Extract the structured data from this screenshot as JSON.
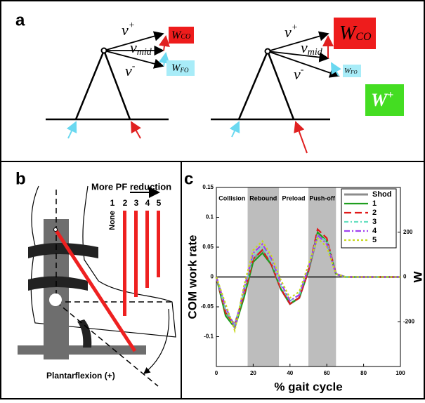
{
  "panel_a": {
    "label": "a",
    "left": {
      "v_plus": {
        "base": "v",
        "sup": "+"
      },
      "v_mid": {
        "base": "v",
        "sub": "mid"
      },
      "v_minus": {
        "base": "v",
        "sup": "-"
      },
      "w_co": {
        "base": "W",
        "sub": "CO"
      },
      "w_fo": {
        "base": "W",
        "sub": "FO"
      }
    },
    "right": {
      "v_plus": {
        "base": "v",
        "sup": "+"
      },
      "v_mid": {
        "base": "v",
        "sub": "mid"
      },
      "v_minus": {
        "base": "v",
        "sup": "-"
      },
      "w_co": {
        "base": "W",
        "sub": "CO"
      },
      "w_fo": {
        "base": "W",
        "sub": "FO"
      },
      "w_plus": {
        "base": "W",
        "sup": "+"
      }
    }
  },
  "panel_b": {
    "label": "b",
    "title": "More PF reduction",
    "levels": [
      "1",
      "None",
      "2",
      "3",
      "4",
      "5"
    ],
    "caption": "Plantarflexion (+)"
  },
  "chart_data": {
    "type": "line",
    "panel_label": "c",
    "ylabel": "COM work rate",
    "xlabel": "% gait cycle",
    "y2label": "W",
    "x": [
      0,
      5,
      10,
      15,
      20,
      25,
      30,
      35,
      40,
      45,
      50,
      55,
      60,
      65,
      70,
      75,
      80,
      85,
      90,
      95,
      100
    ],
    "xlim": [
      0,
      100
    ],
    "xticks": [
      0,
      20,
      40,
      60,
      80,
      100
    ],
    "ylim": [
      -0.15,
      0.15
    ],
    "yticks": [
      -0.1,
      -0.05,
      0,
      0.05,
      0.1,
      0.15
    ],
    "y2lim": [
      -400,
      400
    ],
    "y2ticks": [
      -200,
      0,
      200
    ],
    "legend": "upper right",
    "regions": [
      {
        "label": "Collision",
        "x": [
          0,
          17
        ],
        "shaded": false
      },
      {
        "label": "Rebound",
        "x": [
          17,
          34
        ],
        "shaded": true
      },
      {
        "label": "Preload",
        "x": [
          34,
          50
        ],
        "shaded": false
      },
      {
        "label": "Push-off",
        "x": [
          50,
          65
        ],
        "shaded": true
      }
    ],
    "series": [
      {
        "name": "Shod",
        "color": "#8c8c8c",
        "dash": "",
        "values": [
          0,
          -0.06,
          -0.08,
          -0.03,
          0.03,
          0.045,
          0.02,
          -0.02,
          -0.045,
          -0.035,
          0.01,
          0.07,
          0.06,
          0.005,
          0,
          0,
          0,
          0,
          0,
          0,
          0
        ]
      },
      {
        "name": "1",
        "color": "#1f9e1f",
        "dash": "",
        "values": [
          0,
          -0.065,
          -0.085,
          -0.035,
          0.025,
          0.04,
          0.02,
          -0.02,
          -0.045,
          -0.035,
          0.01,
          0.075,
          0.06,
          0.005,
          0,
          0,
          0,
          0,
          0,
          0,
          0
        ]
      },
      {
        "name": "2",
        "color": "#e01818",
        "dash": "10 5",
        "values": [
          0,
          -0.06,
          -0.08,
          -0.03,
          0.03,
          0.045,
          0.02,
          -0.02,
          -0.045,
          -0.035,
          0.01,
          0.08,
          0.065,
          0.005,
          0,
          0,
          0,
          0,
          0,
          0,
          0
        ]
      },
      {
        "name": "3",
        "color": "#66e0c0",
        "dash": "6 3 2 3",
        "values": [
          0,
          -0.055,
          -0.08,
          -0.025,
          0.035,
          0.05,
          0.025,
          -0.015,
          -0.04,
          -0.03,
          0.015,
          0.07,
          0.06,
          0.005,
          0,
          0,
          0,
          0,
          0,
          0,
          0
        ]
      },
      {
        "name": "4",
        "color": "#a040f0",
        "dash": "8 3 2 3",
        "values": [
          0,
          -0.05,
          -0.085,
          -0.02,
          0.04,
          0.055,
          0.03,
          -0.01,
          -0.04,
          -0.03,
          0.015,
          0.07,
          0.055,
          0.005,
          0,
          0,
          0,
          0,
          0,
          0,
          0
        ]
      },
      {
        "name": "5",
        "color": "#c8d820",
        "dash": "3 3",
        "values": [
          0,
          -0.045,
          -0.09,
          -0.015,
          0.045,
          0.06,
          0.035,
          -0.005,
          -0.035,
          -0.025,
          0.02,
          0.065,
          0.05,
          0.005,
          0,
          0,
          0,
          0,
          0,
          0,
          0
        ]
      }
    ]
  }
}
